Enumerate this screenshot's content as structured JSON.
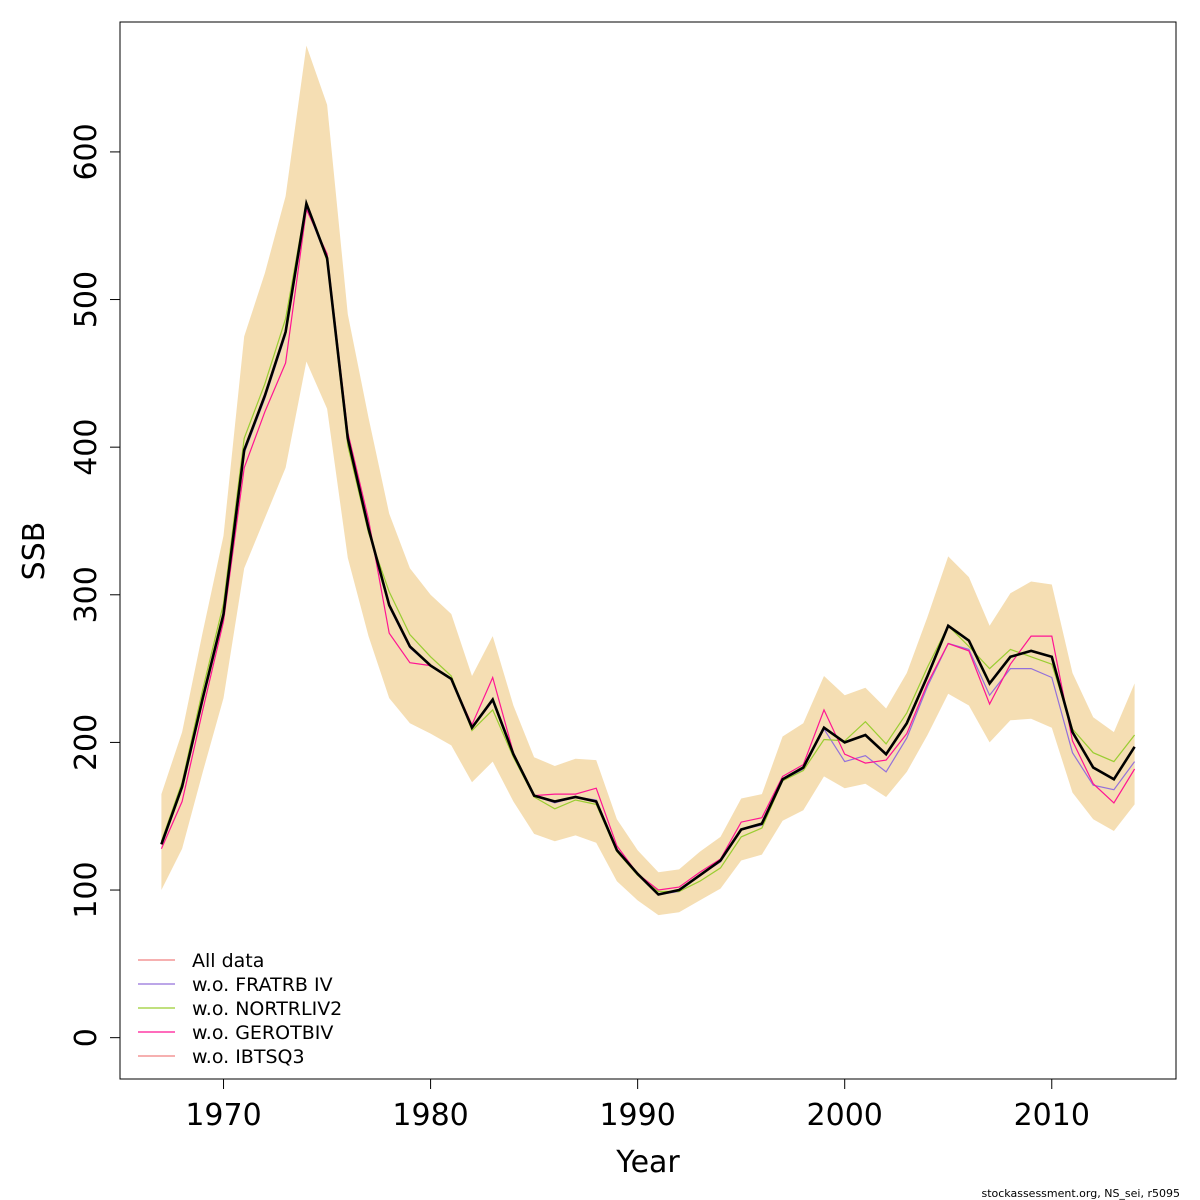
{
  "chart_data": {
    "type": "line",
    "xlabel": "Year",
    "ylabel": "SSB",
    "xlim": [
      1965,
      2016
    ],
    "ylim": [
      -28,
      688
    ],
    "x_ticks": [
      1970,
      1980,
      1990,
      2000,
      2010
    ],
    "y_ticks": [
      0,
      100,
      200,
      300,
      400,
      500,
      600
    ],
    "legend_position": "bottom-left",
    "grid": false,
    "credit": "stockassessment.org, NS_sei, r5095",
    "band_color": "#F5DEB3",
    "x": [
      1967,
      1968,
      1969,
      1970,
      1971,
      1972,
      1973,
      1974,
      1975,
      1976,
      1977,
      1978,
      1979,
      1980,
      1981,
      1982,
      1983,
      1984,
      1985,
      1986,
      1987,
      1988,
      1989,
      1990,
      1991,
      1992,
      1993,
      1994,
      1995,
      1996,
      1997,
      1998,
      1999,
      2000,
      2001,
      2002,
      2003,
      2004,
      2005,
      2006,
      2007,
      2008,
      2009,
      2010,
      2011,
      2012,
      2013,
      2014
    ],
    "confidence_band": {
      "upper": [
        165,
        207,
        275,
        340,
        475,
        518,
        570,
        672,
        632,
        490,
        420,
        355,
        318,
        300,
        287,
        245,
        272,
        225,
        190,
        184,
        189,
        188,
        148,
        127,
        112,
        114,
        126,
        136,
        162,
        165,
        204,
        213,
        245,
        232,
        237,
        223,
        247,
        285,
        326,
        312,
        279,
        301,
        309,
        307,
        247,
        217,
        207,
        240
      ],
      "lower": [
        100,
        128,
        180,
        230,
        318,
        352,
        386,
        458,
        426,
        325,
        272,
        230,
        213,
        206,
        198,
        173,
        187,
        160,
        138,
        133,
        137,
        132,
        106,
        93,
        83,
        85,
        93,
        101,
        120,
        124,
        147,
        154,
        177,
        169,
        172,
        163,
        180,
        205,
        233,
        225,
        200,
        215,
        216,
        210,
        166,
        148,
        140,
        158
      ]
    },
    "series": [
      {
        "name": "All data",
        "color": "#F08080",
        "values": [
          131,
          170,
          230,
          287,
          398,
          435,
          478,
          565,
          528,
          406,
          345,
          293,
          265,
          252,
          243,
          210,
          229,
          192,
          164,
          160,
          163,
          160,
          127,
          111,
          97,
          100,
          110,
          120,
          141,
          145,
          175,
          183,
          210,
          200,
          205,
          192,
          213,
          245,
          279,
          269,
          240,
          258,
          262,
          258,
          207,
          183,
          175,
          197
        ]
      },
      {
        "name": "w.o. FRATRB IV",
        "color": "#9370DB",
        "values": [
          131,
          169,
          229,
          286,
          396,
          433,
          476,
          563,
          527,
          405,
          344,
          292,
          264,
          252,
          243,
          210,
          228,
          191,
          164,
          159,
          163,
          161,
          127,
          111,
          97,
          99,
          110,
          119,
          141,
          144,
          174,
          182,
          209,
          187,
          191,
          180,
          203,
          238,
          267,
          263,
          232,
          250,
          250,
          244,
          193,
          171,
          168,
          187
        ]
      },
      {
        "name": "w.o. NORTRLIV2",
        "color": "#9ACD32",
        "values": [
          133,
          173,
          236,
          294,
          406,
          443,
          487,
          566,
          526,
          401,
          342,
          302,
          273,
          258,
          245,
          208,
          222,
          190,
          163,
          155,
          161,
          158,
          126,
          110,
          99,
          99,
          106,
          115,
          136,
          142,
          174,
          181,
          202,
          201,
          214,
          199,
          220,
          251,
          279,
          265,
          250,
          263,
          258,
          253,
          209,
          193,
          187,
          205
        ]
      },
      {
        "name": "w.o. GEROTBIV",
        "color": "#FF1493",
        "values": [
          128,
          160,
          222,
          282,
          386,
          424,
          457,
          561,
          531,
          410,
          351,
          274,
          254,
          252,
          243,
          212,
          244,
          193,
          164,
          165,
          165,
          169,
          130,
          111,
          100,
          102,
          112,
          121,
          146,
          149,
          177,
          185,
          222,
          192,
          186,
          188,
          206,
          240,
          267,
          262,
          226,
          253,
          272,
          272,
          201,
          172,
          159,
          182
        ]
      },
      {
        "name": "w.o. IBTSQ3",
        "color": "#F08080",
        "values": [
          131,
          170,
          230,
          287,
          398,
          435,
          478,
          565,
          528,
          406,
          345,
          293,
          265,
          252,
          243,
          210,
          229,
          192,
          164,
          160,
          163,
          160,
          127,
          111,
          97,
          100,
          110,
          120,
          141,
          145,
          175,
          183,
          210,
          200,
          205,
          192,
          213,
          245,
          279,
          269,
          240,
          258,
          262,
          258,
          207,
          183,
          175,
          197
        ]
      }
    ],
    "main_line": {
      "color": "#000000",
      "values": [
        131,
        170,
        230,
        287,
        398,
        435,
        478,
        565,
        528,
        406,
        345,
        293,
        265,
        252,
        243,
        210,
        229,
        192,
        164,
        160,
        163,
        160,
        127,
        111,
        97,
        100,
        110,
        120,
        141,
        145,
        175,
        183,
        210,
        200,
        205,
        192,
        213,
        245,
        279,
        269,
        240,
        258,
        262,
        258,
        207,
        183,
        175,
        197
      ]
    }
  }
}
